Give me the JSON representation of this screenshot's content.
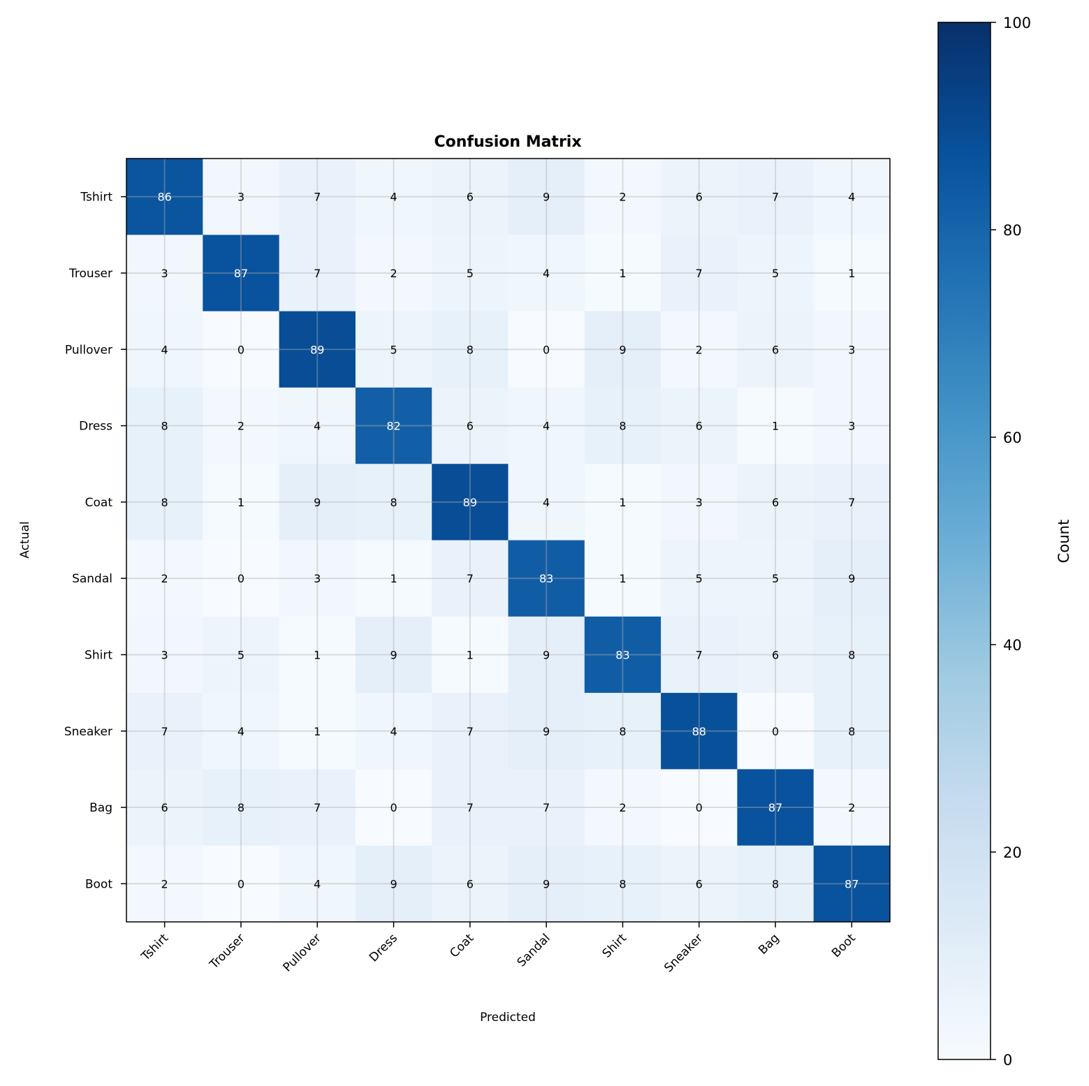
{
  "chart_data": {
    "type": "heatmap",
    "title": "Confusion Matrix",
    "xlabel": "Predicted",
    "ylabel": "Actual",
    "x_categories": [
      "Tshirt",
      "Trouser",
      "Pullover",
      "Dress",
      "Coat",
      "Sandal",
      "Shirt",
      "Sneaker",
      "Bag",
      "Boot"
    ],
    "y_categories": [
      "Tshirt",
      "Trouser",
      "Pullover",
      "Dress",
      "Coat",
      "Sandal",
      "Shirt",
      "Sneaker",
      "Bag",
      "Boot"
    ],
    "values": [
      [
        86,
        3,
        7,
        4,
        6,
        9,
        2,
        6,
        7,
        4
      ],
      [
        3,
        87,
        7,
        2,
        5,
        4,
        1,
        7,
        5,
        1
      ],
      [
        4,
        0,
        89,
        5,
        8,
        0,
        9,
        2,
        6,
        3
      ],
      [
        8,
        2,
        4,
        82,
        6,
        4,
        8,
        6,
        1,
        3
      ],
      [
        8,
        1,
        9,
        8,
        89,
        4,
        1,
        3,
        6,
        7
      ],
      [
        2,
        0,
        3,
        1,
        7,
        83,
        1,
        5,
        5,
        9
      ],
      [
        3,
        5,
        1,
        9,
        1,
        9,
        83,
        7,
        6,
        8
      ],
      [
        7,
        4,
        1,
        4,
        7,
        9,
        8,
        88,
        0,
        8
      ],
      [
        6,
        8,
        7,
        0,
        7,
        7,
        2,
        0,
        87,
        2
      ],
      [
        2,
        0,
        4,
        9,
        6,
        9,
        8,
        6,
        8,
        87
      ]
    ],
    "colormap": "Blues",
    "vmin": 0,
    "vmax": 100,
    "colorbar": {
      "label": "Count",
      "ticks": [
        "0",
        "20",
        "40",
        "60",
        "80",
        "100"
      ],
      "tick_values": [
        0,
        20,
        40,
        60,
        80,
        100
      ]
    },
    "grid": true,
    "text_threshold": 50
  }
}
